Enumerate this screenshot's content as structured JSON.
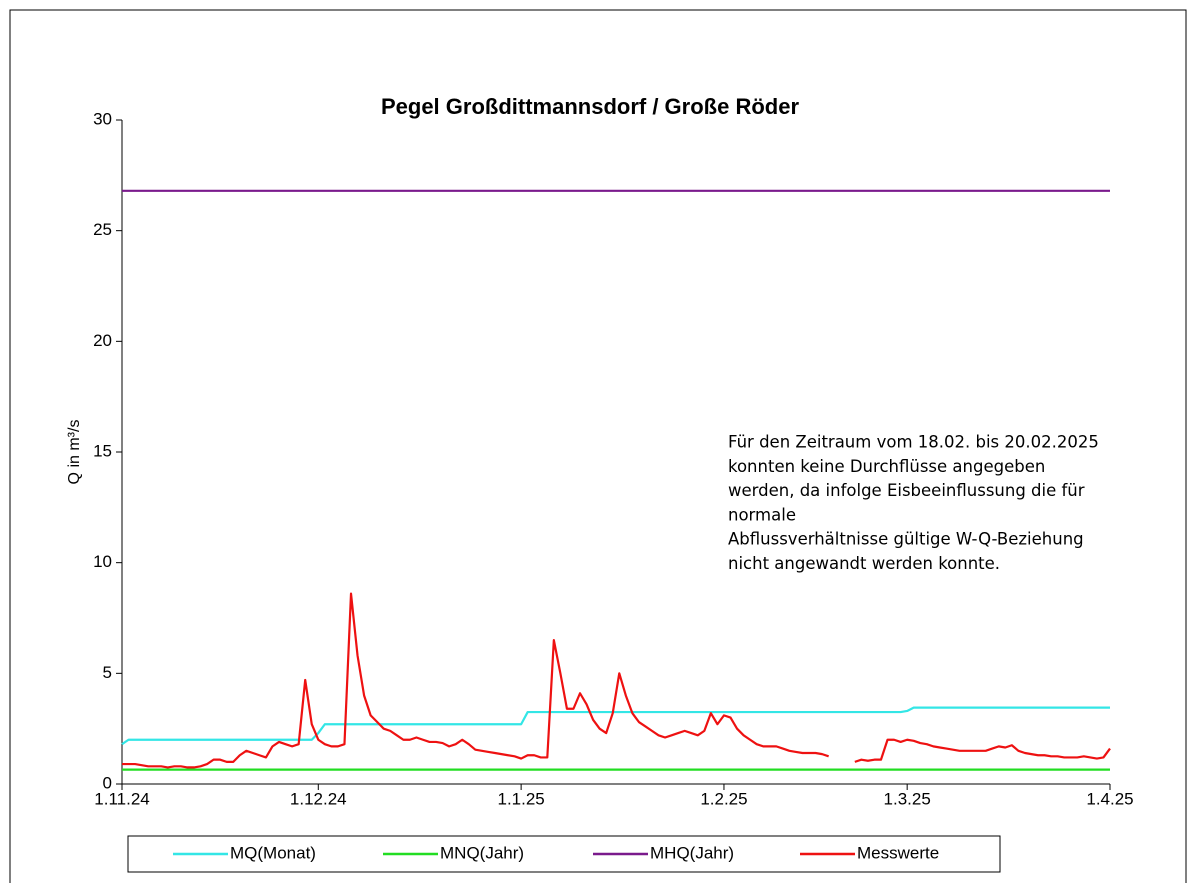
{
  "chart_data": {
    "type": "line",
    "title": "Pegel Großdittmannsdorf / Große Röder",
    "ylabel": "Q in m³/s",
    "annotation": [
      "Für den Zeitraum vom 18.02. bis 20.02.2025",
      "konnten keine Durchflüsse angegeben",
      "werden, da infolge Eisbeeinflussung die für",
      "normale",
      "Abflussverhältnisse gültige W-Q-Beziehung",
      "nicht angewandt werden konnte."
    ],
    "categories": [
      "1.11.24",
      "2.11.24",
      "3.11.24",
      "4.11.24",
      "5.11.24",
      "6.11.24",
      "7.11.24",
      "8.11.24",
      "9.11.24",
      "10.11.24",
      "11.11.24",
      "12.11.24",
      "13.11.24",
      "14.11.24",
      "15.11.24",
      "16.11.24",
      "17.11.24",
      "18.11.24",
      "19.11.24",
      "20.11.24",
      "21.11.24",
      "22.11.24",
      "23.11.24",
      "24.11.24",
      "25.11.24",
      "26.11.24",
      "27.11.24",
      "28.11.24",
      "29.11.24",
      "30.11.24",
      "1.12.24",
      "2.12.24",
      "3.12.24",
      "4.12.24",
      "5.12.24",
      "6.12.24",
      "7.12.24",
      "8.12.24",
      "9.12.24",
      "10.12.24",
      "11.12.24",
      "12.12.24",
      "13.12.24",
      "14.12.24",
      "15.12.24",
      "16.12.24",
      "17.12.24",
      "18.12.24",
      "19.12.24",
      "20.12.24",
      "21.12.24",
      "22.12.24",
      "23.12.24",
      "24.12.24",
      "25.12.24",
      "26.12.24",
      "27.12.24",
      "28.12.24",
      "29.12.24",
      "30.12.24",
      "31.12.24",
      "1.1.25",
      "2.1.25",
      "3.1.25",
      "4.1.25",
      "5.1.25",
      "6.1.25",
      "7.1.25",
      "8.1.25",
      "9.1.25",
      "10.1.25",
      "11.1.25",
      "12.1.25",
      "13.1.25",
      "14.1.25",
      "15.1.25",
      "16.1.25",
      "17.1.25",
      "18.1.25",
      "19.1.25",
      "20.1.25",
      "21.1.25",
      "22.1.25",
      "23.1.25",
      "24.1.25",
      "25.1.25",
      "26.1.25",
      "27.1.25",
      "28.1.25",
      "29.1.25",
      "30.1.25",
      "31.1.25",
      "1.2.25",
      "2.2.25",
      "3.2.25",
      "4.2.25",
      "5.2.25",
      "6.2.25",
      "7.2.25",
      "8.2.25",
      "9.2.25",
      "10.2.25",
      "11.2.25",
      "12.2.25",
      "13.2.25",
      "14.2.25",
      "15.2.25",
      "16.2.25",
      "17.2.25",
      "18.2.25",
      "19.2.25",
      "20.2.25",
      "21.2.25",
      "22.2.25",
      "23.2.25",
      "24.2.25",
      "25.2.25",
      "26.2.25",
      "27.2.25",
      "28.2.25",
      "1.3.25",
      "2.3.25",
      "3.3.25",
      "4.3.25",
      "5.3.25",
      "6.3.25",
      "7.3.25",
      "8.3.25",
      "9.3.25",
      "10.3.25",
      "11.3.25",
      "12.3.25",
      "13.3.25",
      "14.3.25",
      "15.3.25",
      "16.3.25",
      "17.3.25",
      "18.3.25",
      "19.3.25",
      "20.3.25",
      "21.3.25",
      "22.3.25",
      "23.3.25",
      "24.3.25",
      "25.3.25",
      "26.3.25",
      "27.3.25",
      "28.3.25",
      "29.3.25",
      "30.3.25",
      "31.3.25",
      "1.4.25"
    ],
    "xticks": [
      "1.11.24",
      "1.12.24",
      "1.1.25",
      "1.2.25",
      "1.3.25",
      "1.4.25"
    ],
    "ylim": [
      0,
      30
    ],
    "yticks": [
      0,
      5,
      10,
      15,
      20,
      25,
      30
    ],
    "grid": false,
    "legend": "bottom",
    "series": [
      {
        "name": "MQ(Monat)",
        "color": "#33e6e6",
        "values": [
          1.8,
          2.0,
          2.0,
          2.0,
          2.0,
          2.0,
          2.0,
          2.0,
          2.0,
          2.0,
          2.0,
          2.0,
          2.0,
          2.0,
          2.0,
          2.0,
          2.0,
          2.0,
          2.0,
          2.0,
          2.0,
          2.0,
          2.0,
          2.0,
          2.0,
          2.0,
          2.0,
          2.0,
          2.0,
          2.0,
          2.3,
          2.7,
          2.7,
          2.7,
          2.7,
          2.7,
          2.7,
          2.7,
          2.7,
          2.7,
          2.7,
          2.7,
          2.7,
          2.7,
          2.7,
          2.7,
          2.7,
          2.7,
          2.7,
          2.7,
          2.7,
          2.7,
          2.7,
          2.7,
          2.7,
          2.7,
          2.7,
          2.7,
          2.7,
          2.7,
          2.7,
          2.7,
          3.25,
          3.25,
          3.25,
          3.25,
          3.25,
          3.25,
          3.25,
          3.25,
          3.25,
          3.25,
          3.25,
          3.25,
          3.25,
          3.25,
          3.25,
          3.25,
          3.25,
          3.25,
          3.25,
          3.25,
          3.25,
          3.25,
          3.25,
          3.25,
          3.25,
          3.25,
          3.25,
          3.25,
          3.25,
          3.25,
          3.25,
          3.25,
          3.25,
          3.25,
          3.25,
          3.25,
          3.25,
          3.25,
          3.25,
          3.25,
          3.25,
          3.25,
          3.25,
          3.25,
          3.25,
          3.25,
          3.25,
          3.25,
          3.25,
          3.25,
          3.25,
          3.25,
          3.25,
          3.25,
          3.25,
          3.25,
          3.25,
          3.25,
          3.3,
          3.45,
          3.45,
          3.45,
          3.45,
          3.45,
          3.45,
          3.45,
          3.45,
          3.45,
          3.45,
          3.45,
          3.45,
          3.45,
          3.45,
          3.45,
          3.45,
          3.45,
          3.45,
          3.45,
          3.45,
          3.45,
          3.45,
          3.45,
          3.45,
          3.45,
          3.45,
          3.45,
          3.45,
          3.45,
          3.45,
          3.45
        ]
      },
      {
        "name": "MNQ(Jahr)",
        "color": "#22dd22",
        "values": [
          0.65,
          0.65,
          0.65,
          0.65,
          0.65,
          0.65,
          0.65,
          0.65,
          0.65,
          0.65,
          0.65,
          0.65,
          0.65,
          0.65,
          0.65,
          0.65,
          0.65,
          0.65,
          0.65,
          0.65,
          0.65,
          0.65,
          0.65,
          0.65,
          0.65,
          0.65,
          0.65,
          0.65,
          0.65,
          0.65,
          0.65,
          0.65,
          0.65,
          0.65,
          0.65,
          0.65,
          0.65,
          0.65,
          0.65,
          0.65,
          0.65,
          0.65,
          0.65,
          0.65,
          0.65,
          0.65,
          0.65,
          0.65,
          0.65,
          0.65,
          0.65,
          0.65,
          0.65,
          0.65,
          0.65,
          0.65,
          0.65,
          0.65,
          0.65,
          0.65,
          0.65,
          0.65,
          0.65,
          0.65,
          0.65,
          0.65,
          0.65,
          0.65,
          0.65,
          0.65,
          0.65,
          0.65,
          0.65,
          0.65,
          0.65,
          0.65,
          0.65,
          0.65,
          0.65,
          0.65,
          0.65,
          0.65,
          0.65,
          0.65,
          0.65,
          0.65,
          0.65,
          0.65,
          0.65,
          0.65,
          0.65,
          0.65,
          0.65,
          0.65,
          0.65,
          0.65,
          0.65,
          0.65,
          0.65,
          0.65,
          0.65,
          0.65,
          0.65,
          0.65,
          0.65,
          0.65,
          0.65,
          0.65,
          0.65,
          0.65,
          0.65,
          0.65,
          0.65,
          0.65,
          0.65,
          0.65,
          0.65,
          0.65,
          0.65,
          0.65,
          0.65,
          0.65,
          0.65,
          0.65,
          0.65,
          0.65,
          0.65,
          0.65,
          0.65,
          0.65,
          0.65,
          0.65,
          0.65,
          0.65,
          0.65,
          0.65,
          0.65,
          0.65,
          0.65,
          0.65,
          0.65,
          0.65,
          0.65,
          0.65,
          0.65,
          0.65,
          0.65,
          0.65,
          0.65,
          0.65,
          0.65,
          0.65
        ]
      },
      {
        "name": "MHQ(Jahr)",
        "color": "#7a1a8c",
        "values": [
          26.8,
          26.8,
          26.8,
          26.8,
          26.8,
          26.8,
          26.8,
          26.8,
          26.8,
          26.8,
          26.8,
          26.8,
          26.8,
          26.8,
          26.8,
          26.8,
          26.8,
          26.8,
          26.8,
          26.8,
          26.8,
          26.8,
          26.8,
          26.8,
          26.8,
          26.8,
          26.8,
          26.8,
          26.8,
          26.8,
          26.8,
          26.8,
          26.8,
          26.8,
          26.8,
          26.8,
          26.8,
          26.8,
          26.8,
          26.8,
          26.8,
          26.8,
          26.8,
          26.8,
          26.8,
          26.8,
          26.8,
          26.8,
          26.8,
          26.8,
          26.8,
          26.8,
          26.8,
          26.8,
          26.8,
          26.8,
          26.8,
          26.8,
          26.8,
          26.8,
          26.8,
          26.8,
          26.8,
          26.8,
          26.8,
          26.8,
          26.8,
          26.8,
          26.8,
          26.8,
          26.8,
          26.8,
          26.8,
          26.8,
          26.8,
          26.8,
          26.8,
          26.8,
          26.8,
          26.8,
          26.8,
          26.8,
          26.8,
          26.8,
          26.8,
          26.8,
          26.8,
          26.8,
          26.8,
          26.8,
          26.8,
          26.8,
          26.8,
          26.8,
          26.8,
          26.8,
          26.8,
          26.8,
          26.8,
          26.8,
          26.8,
          26.8,
          26.8,
          26.8,
          26.8,
          26.8,
          26.8,
          26.8,
          26.8,
          26.8,
          26.8,
          26.8,
          26.8,
          26.8,
          26.8,
          26.8,
          26.8,
          26.8,
          26.8,
          26.8,
          26.8,
          26.8,
          26.8,
          26.8,
          26.8,
          26.8,
          26.8,
          26.8,
          26.8,
          26.8,
          26.8,
          26.8,
          26.8,
          26.8,
          26.8,
          26.8,
          26.8,
          26.8,
          26.8,
          26.8,
          26.8,
          26.8,
          26.8,
          26.8,
          26.8,
          26.8,
          26.8,
          26.8,
          26.8,
          26.8,
          26.8,
          26.8
        ]
      },
      {
        "name": "Messwerte",
        "color": "#ee1111",
        "values": [
          0.9,
          0.9,
          0.9,
          0.85,
          0.8,
          0.8,
          0.8,
          0.75,
          0.8,
          0.8,
          0.75,
          0.75,
          0.8,
          0.9,
          1.1,
          1.1,
          1.0,
          1.0,
          1.3,
          1.5,
          1.4,
          1.3,
          1.2,
          1.7,
          1.9,
          1.8,
          1.7,
          1.8,
          4.7,
          2.7,
          2.0,
          1.8,
          1.7,
          1.7,
          1.8,
          8.6,
          5.8,
          4.0,
          3.1,
          2.8,
          2.5,
          2.4,
          2.2,
          2.0,
          2.0,
          2.1,
          2.0,
          1.9,
          1.9,
          1.85,
          1.7,
          1.8,
          2.0,
          1.8,
          1.55,
          1.5,
          1.45,
          1.4,
          1.35,
          1.3,
          1.25,
          1.15,
          1.3,
          1.3,
          1.2,
          1.2,
          6.5,
          5.0,
          3.4,
          3.4,
          4.1,
          3.6,
          2.9,
          2.5,
          2.3,
          3.2,
          5.0,
          4.0,
          3.2,
          2.8,
          2.6,
          2.4,
          2.2,
          2.1,
          2.2,
          2.3,
          2.4,
          2.3,
          2.2,
          2.4,
          3.2,
          2.7,
          3.1,
          3.0,
          2.5,
          2.2,
          2.0,
          1.8,
          1.7,
          1.7,
          1.7,
          1.6,
          1.5,
          1.45,
          1.4,
          1.4,
          1.4,
          1.35,
          1.25,
          null,
          null,
          null,
          1.0,
          1.1,
          1.05,
          1.1,
          1.1,
          2.0,
          2.0,
          1.9,
          2.0,
          1.95,
          1.85,
          1.8,
          1.7,
          1.65,
          1.6,
          1.55,
          1.5,
          1.5,
          1.5,
          1.5,
          1.5,
          1.6,
          1.7,
          1.65,
          1.75,
          1.5,
          1.4,
          1.35,
          1.3,
          1.3,
          1.25,
          1.25,
          1.2,
          1.2,
          1.2,
          1.25,
          1.2,
          1.15,
          1.2,
          1.6
        ]
      }
    ]
  }
}
